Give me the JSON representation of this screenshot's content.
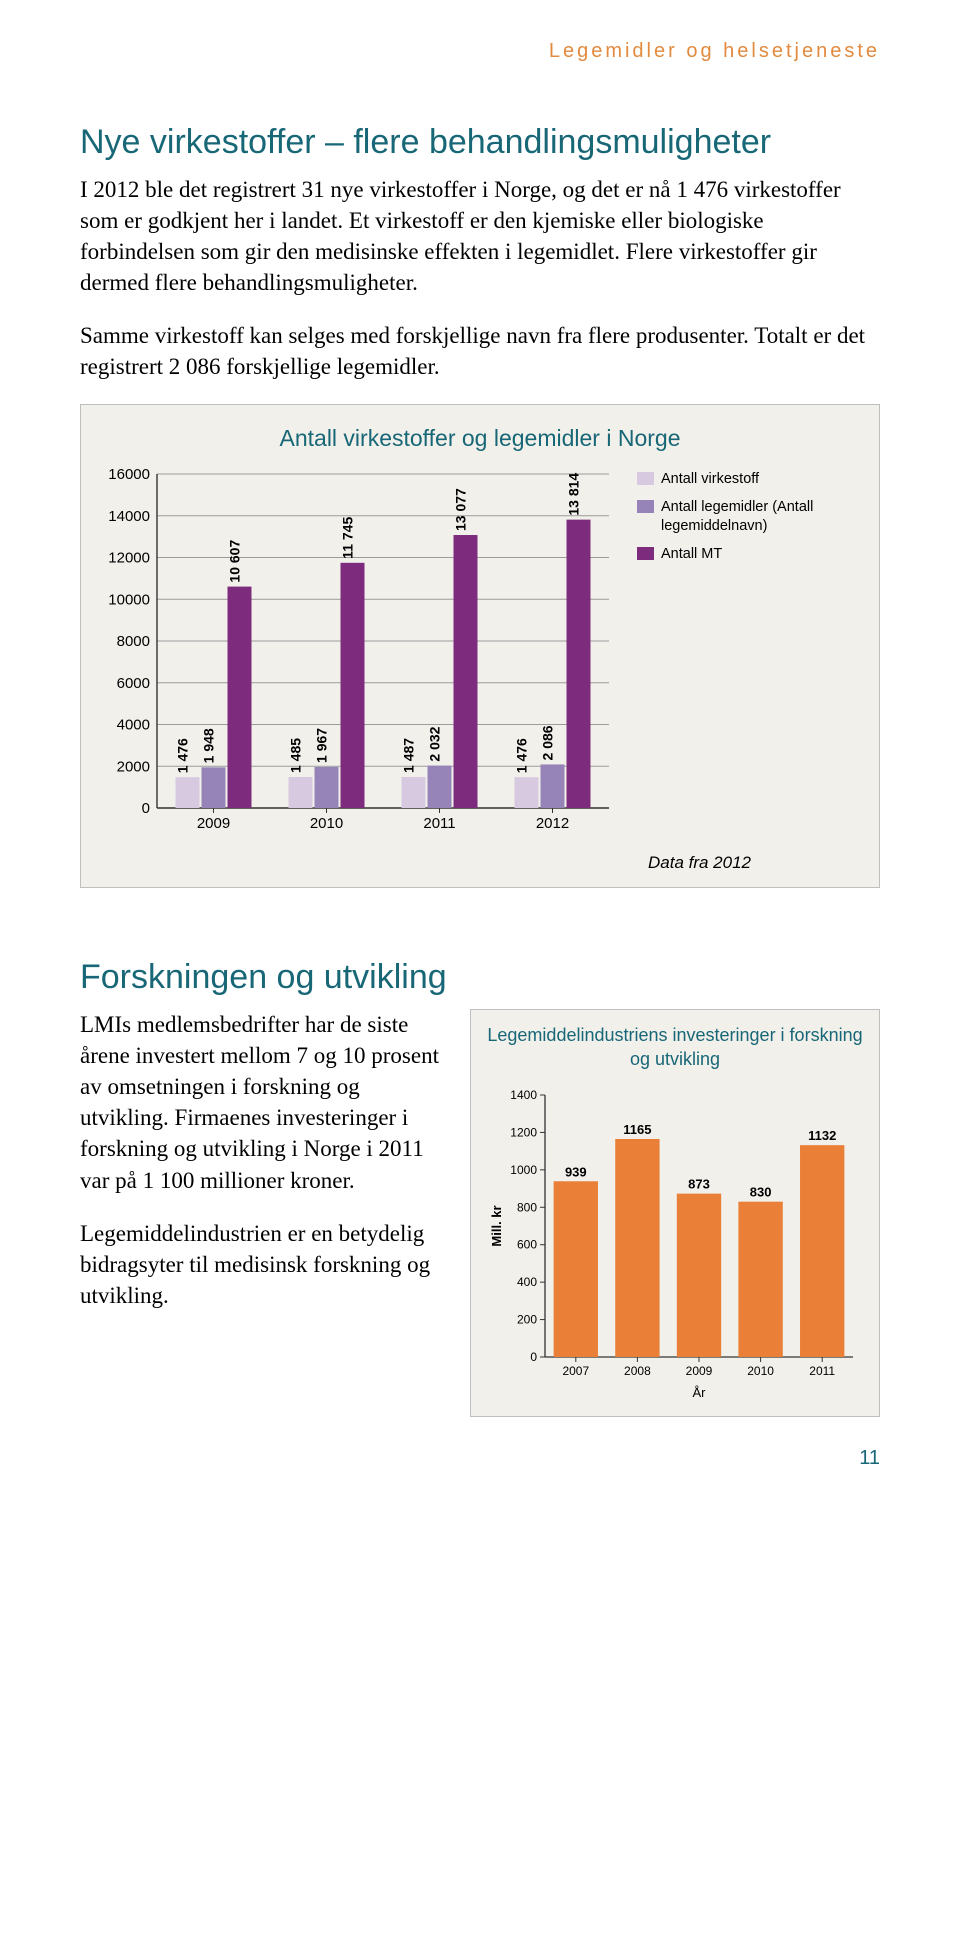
{
  "header": {
    "text": "Legemidler og helsetjeneste",
    "color": "#e28a3e"
  },
  "section1": {
    "title": "Nye virkestoffer – flere behandlingsmuligheter",
    "title_color": "#186777",
    "paragraphs": [
      "I 2012 ble det registrert 31 nye virkestoffer i Norge, og det er nå 1 476 virkestoffer som er godkjent her i landet. Et virkestoff er den kjemiske eller biologiske forbindelsen som gir den medisinske effekten i legemidlet. Flere virkestoffer gir dermed flere behandlingsmuligheter.",
      "Samme virkestoff kan selges med forskjellige navn fra flere produsenter. Totalt er det registrert 2 086 forskjellige legemidler."
    ]
  },
  "chart1": {
    "title": "Antall virkestoffer og legemidler i Norge",
    "title_color": "#186777",
    "years": [
      "2009",
      "2010",
      "2011",
      "2012"
    ],
    "series": [
      {
        "key": "virkestoff",
        "label": "Antall virkestoff",
        "color": "#d7c9e0",
        "values": [
          1476,
          1485,
          1487,
          1476
        ]
      },
      {
        "key": "legemidler",
        "label": "Antall legemidler (Antall legemiddelnavn)",
        "color": "#9684b8",
        "values": [
          1948,
          1967,
          2032,
          2086
        ]
      },
      {
        "key": "mt",
        "label": "Antall MT",
        "color": "#7d2c7d",
        "values": [
          10607,
          11745,
          13077,
          13814
        ]
      }
    ],
    "ylim": [
      0,
      16000
    ],
    "ytick_step": 2000,
    "grid_color": "#9c9c9c",
    "axis_color": "#333333",
    "background": "#f2f0eb",
    "tick_fontsize": 15,
    "barlabel_fontsize": 14,
    "source": "Data fra 2012"
  },
  "section2": {
    "title": "Forskningen og utvikling",
    "title_color": "#186777",
    "paragraphs": [
      "LMIs medlemsbedrifter har de siste årene investert mellom 7 og 10 prosent av omsetningen i forskning og utvikling. Firmaenes investeringer i forskning og utvikling i Norge i 2011 var på 1 100 millioner kroner.",
      "Legemiddelindustrien er en betydelig bidragsyter til medisinsk forskning og utvikling."
    ]
  },
  "chart2": {
    "title": "Legemiddelindustriens investeringer i forskning og utvikling",
    "title_color": "#186777",
    "ylabel": "Mill. kr",
    "xlabel": "År",
    "years": [
      "2007",
      "2008",
      "2009",
      "2010",
      "2011"
    ],
    "values": [
      939,
      1165,
      873,
      830,
      1132
    ],
    "bar_color": "#ea7f37",
    "ylim": [
      0,
      1400
    ],
    "ytick_step": 200,
    "axis_color": "#333333",
    "background": "#f2f0eb",
    "tick_fontsize": 12,
    "barlabel_fontsize": 13
  },
  "page_number": "11",
  "page_number_color": "#186777"
}
